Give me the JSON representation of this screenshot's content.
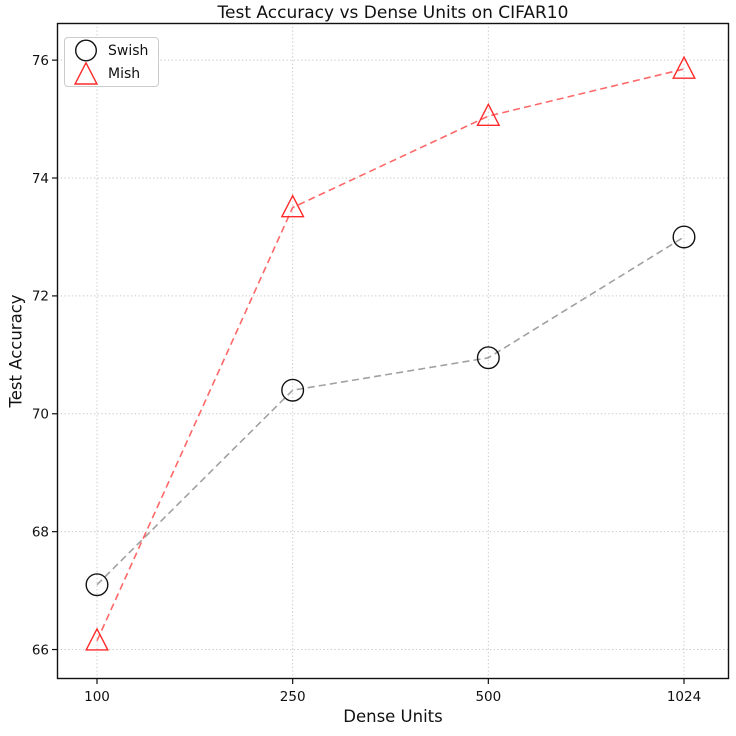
{
  "chart_data": {
    "type": "line",
    "title": "Test Accuracy vs Dense Units on CIFAR10",
    "xlabel": "Dense Units",
    "ylabel": "Test Accuracy",
    "categories": [
      "100",
      "250",
      "500",
      "1024"
    ],
    "yticks": [
      66,
      68,
      70,
      72,
      74,
      76
    ],
    "ylim": [
      65.5,
      76.63
    ],
    "grid": "dotted both axes",
    "legend_position": "upper-left",
    "series": [
      {
        "name": "Swish",
        "marker": "circle",
        "marker_color": "#111111",
        "line_color": "#909090",
        "line_style": "dashed",
        "values": [
          67.1,
          70.4,
          70.95,
          73.0
        ]
      },
      {
        "name": "Mish",
        "marker": "triangle",
        "marker_color": "#ff2a2a",
        "line_color": "#ff4d4d",
        "line_style": "dashed",
        "values": [
          66.15,
          73.5,
          75.05,
          75.85
        ]
      }
    ]
  }
}
